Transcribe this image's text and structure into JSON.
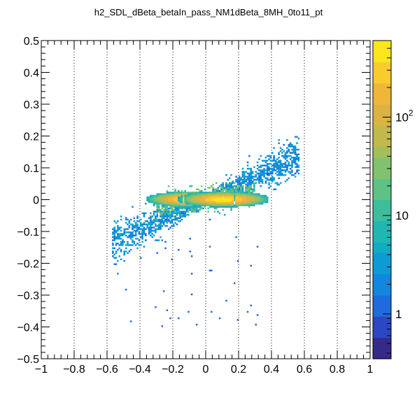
{
  "chart_data": {
    "type": "heatmap",
    "title": "h2_SDL_dBeta_betaIn_pass_NM1dBeta_8MH_0to11_pt",
    "xlabel": "",
    "ylabel": "",
    "xlim": [
      -1,
      1
    ],
    "ylim": [
      -0.5,
      0.5
    ],
    "x_ticks": [
      "−1",
      "−0.8",
      "−0.6",
      "−0.4",
      "−0.2",
      "0",
      "0.2",
      "0.4",
      "0.6",
      "0.8",
      "1"
    ],
    "y_ticks": [
      "−0.5",
      "−0.4",
      "−0.3",
      "−0.2",
      "−0.1",
      "0",
      "0.1",
      "0.2",
      "0.3",
      "0.4",
      "0.5"
    ],
    "x_tick_values": [
      -1,
      -0.8,
      -0.6,
      -0.4,
      -0.2,
      0,
      0.2,
      0.4,
      0.6,
      0.8,
      1
    ],
    "y_tick_values": [
      -0.5,
      -0.4,
      -0.3,
      -0.2,
      -0.1,
      0,
      0.1,
      0.2,
      0.3,
      0.4,
      0.5
    ],
    "grid_x": "dotted",
    "grid_y": "off",
    "colorbar": {
      "scale": "log",
      "range": [
        0.35,
        600
      ],
      "labels": [
        {
          "text": "1",
          "value": 1
        },
        {
          "text": "10",
          "value": 10
        },
        {
          "text": "10",
          "sup": "2",
          "value": 100
        }
      ],
      "palette": [
        "#352a87",
        "#2b48c2",
        "#1f6bdc",
        "#1287dd",
        "#0e9bd3",
        "#13abc4",
        "#22b6b2",
        "#3dbd9c",
        "#5fc285",
        "#81c26e",
        "#a2bf5a",
        "#c1b94c",
        "#dcb244",
        "#f0b63a",
        "#f9cc2d",
        "#f9e61e"
      ]
    },
    "regions": [
      {
        "shape": "core",
        "cx": -0.1,
        "cy": 0.0,
        "sx": 0.085,
        "sy": 0.008,
        "peak": 500
      },
      {
        "shape": "core",
        "cx": 0.11,
        "cy": 0.0,
        "sx": 0.09,
        "sy": 0.008,
        "peak": 500
      },
      {
        "shape": "band",
        "x_from": -0.57,
        "x_to": 0.57,
        "slope": 0.24,
        "width": 0.05,
        "level": 3
      },
      {
        "shape": "halo",
        "x_from": -0.3,
        "x_to": 0.3,
        "half_height": 0.03,
        "level": 30
      }
    ]
  }
}
